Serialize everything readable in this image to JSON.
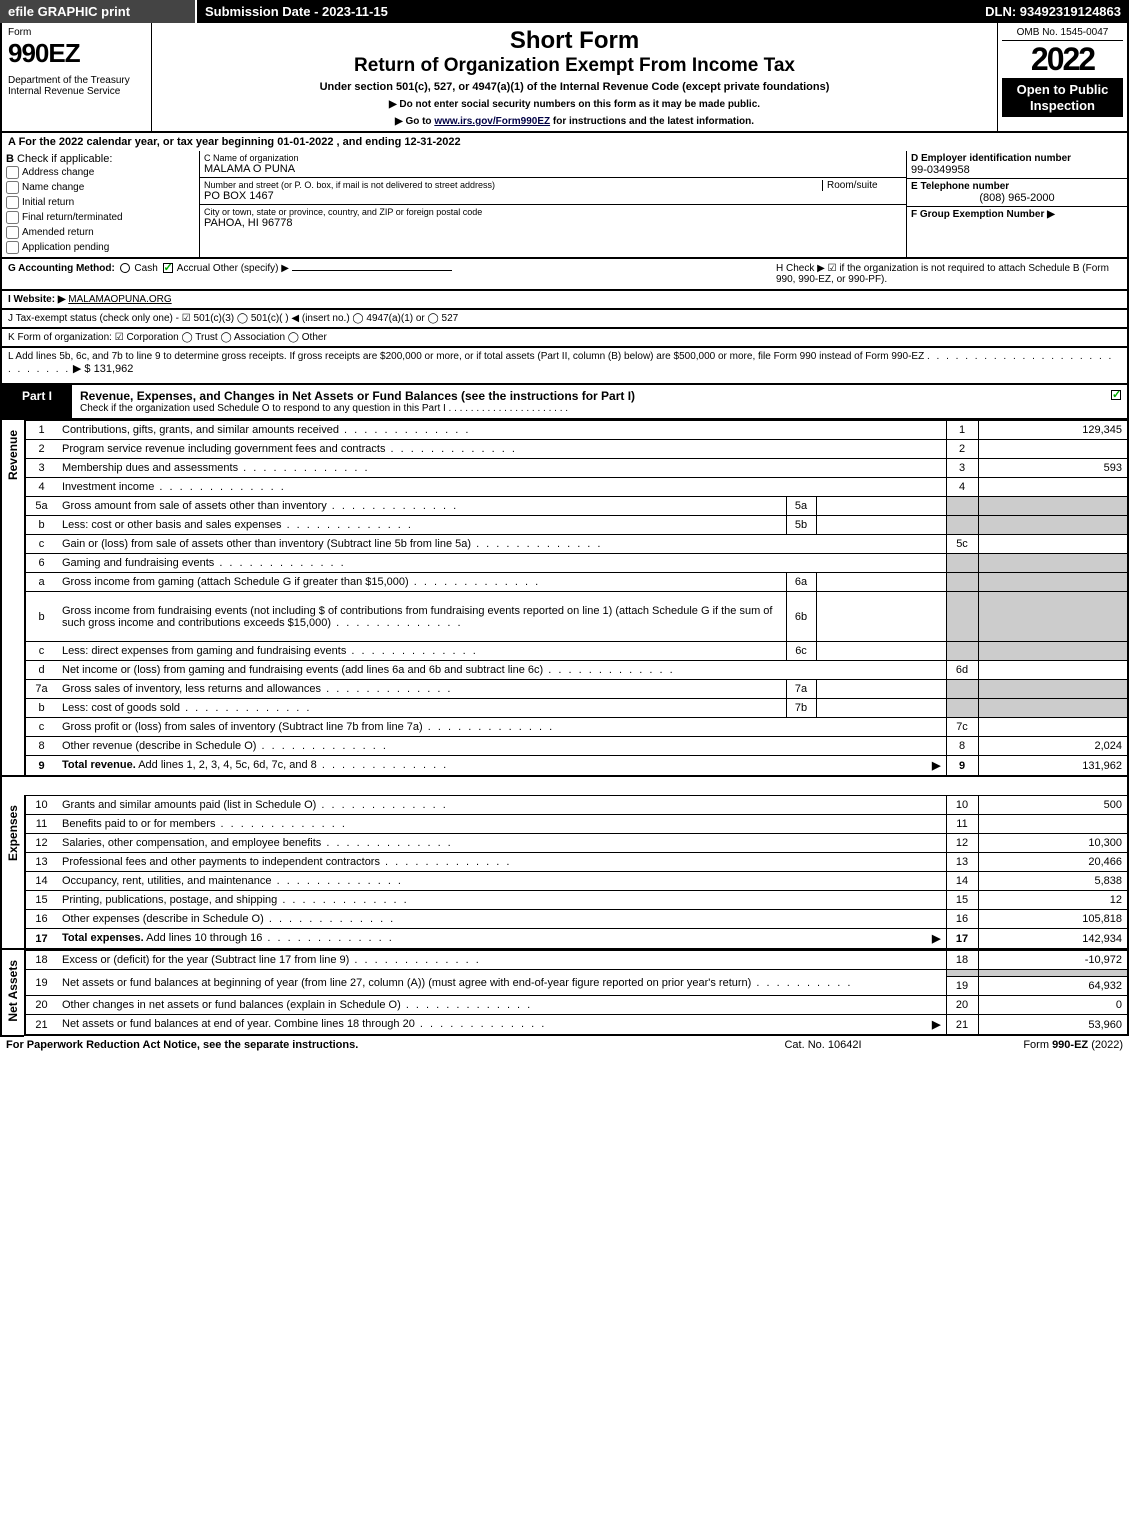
{
  "topbar": {
    "efile": "efile GRAPHIC print",
    "submission": "Submission Date - 2023-11-15",
    "dln": "DLN: 93492319124863"
  },
  "header": {
    "form_label": "Form",
    "form_number": "990EZ",
    "short_form": "Short Form",
    "return_title": "Return of Organization Exempt From Income Tax",
    "under_section": "Under section 501(c), 527, or 4947(a)(1) of the Internal Revenue Code (except private foundations)",
    "do_not_enter": "▶ Do not enter social security numbers on this form as it may be made public.",
    "go_to": "▶ Go to www.irs.gov/Form990EZ for instructions and the latest information.",
    "dept": "Department of the Treasury",
    "irs": "Internal Revenue Service",
    "omb": "OMB No. 1545-0047",
    "year": "2022",
    "open_public": "Open to Public Inspection"
  },
  "line_a": "A  For the 2022 calendar year, or tax year beginning 01-01-2022 , and ending 12-31-2022",
  "section_b": {
    "label": "B",
    "check_if": "Check if applicable:",
    "opts": [
      "Address change",
      "Name change",
      "Initial return",
      "Final return/terminated",
      "Amended return",
      "Application pending"
    ]
  },
  "section_c": {
    "name_lbl": "C Name of organization",
    "name_val": "MALAMA O PUNA",
    "street_lbl": "Number and street (or P. O. box, if mail is not delivered to street address)",
    "street_val": "PO BOX 1467",
    "room_lbl": "Room/suite",
    "city_lbl": "City or town, state or province, country, and ZIP or foreign postal code",
    "city_val": "PAHOA, HI  96778"
  },
  "section_de": {
    "d_lbl": "D Employer identification number",
    "d_val": "99-0349958",
    "e_lbl": "E Telephone number",
    "e_val": "(808) 965-2000",
    "f_lbl": "F Group Exemption Number ▶"
  },
  "section_g": {
    "label": "G Accounting Method:",
    "cash": "Cash",
    "accrual": "Accrual",
    "other": "Other (specify) ▶"
  },
  "section_h": {
    "text": "H  Check ▶ ☑ if the organization is not required to attach Schedule B (Form 990, 990-EZ, or 990-PF)."
  },
  "line_i": {
    "label": "I Website: ▶",
    "val": "MALAMAOPUNA.ORG"
  },
  "line_j": {
    "label": "J Tax-exempt status (check only one) - ☑ 501(c)(3)  ◯ 501(c)(  ) ◀ (insert no.)  ◯ 4947(a)(1) or  ◯ 527"
  },
  "line_k": {
    "label": "K Form of organization:  ☑ Corporation  ◯ Trust  ◯ Association  ◯ Other"
  },
  "line_l": {
    "text": "L Add lines 5b, 6c, and 7b to line 9 to determine gross receipts. If gross receipts are $200,000 or more, or if total assets (Part II, column (B) below) are $500,000 or more, file Form 990 instead of Form 990-EZ",
    "amount": "▶ $ 131,962"
  },
  "part1": {
    "tab": "Part I",
    "title": "Revenue, Expenses, and Changes in Net Assets or Fund Balances (see the instructions for Part I)",
    "sub": "Check if the organization used Schedule O to respond to any question in this Part I"
  },
  "sections": {
    "revenue": "Revenue",
    "expenses": "Expenses",
    "netassets": "Net Assets"
  },
  "rows": [
    {
      "n": "1",
      "d": "Contributions, gifts, grants, and similar amounts received",
      "tn": "1",
      "tv": "129,345"
    },
    {
      "n": "2",
      "d": "Program service revenue including government fees and contracts",
      "tn": "2",
      "tv": ""
    },
    {
      "n": "3",
      "d": "Membership dues and assessments",
      "tn": "3",
      "tv": "593"
    },
    {
      "n": "4",
      "d": "Investment income",
      "tn": "4",
      "tv": ""
    },
    {
      "n": "5a",
      "d": "Gross amount from sale of assets other than inventory",
      "sn": "5a",
      "sv": "",
      "shaded_tot": true
    },
    {
      "n": "b",
      "d": "Less: cost or other basis and sales expenses",
      "sn": "5b",
      "sv": "",
      "shaded_tot": true
    },
    {
      "n": "c",
      "d": "Gain or (loss) from sale of assets other than inventory (Subtract line 5b from line 5a)",
      "tn": "5c",
      "tv": ""
    },
    {
      "n": "6",
      "d": "Gaming and fundraising events",
      "shaded_tot": true,
      "no_tot_num": true
    },
    {
      "n": "a",
      "d": "Gross income from gaming (attach Schedule G if greater than $15,000)",
      "sn": "6a",
      "sv": "",
      "shaded_tot": true
    },
    {
      "n": "b",
      "d": "Gross income from fundraising events (not including $                    of contributions from fundraising events reported on line 1) (attach Schedule G if the sum of such gross income and contributions exceeds $15,000)",
      "sn": "6b",
      "sv": "",
      "shaded_tot": true,
      "tall": true
    },
    {
      "n": "c",
      "d": "Less: direct expenses from gaming and fundraising events",
      "sn": "6c",
      "sv": "",
      "shaded_tot": true
    },
    {
      "n": "d",
      "d": "Net income or (loss) from gaming and fundraising events (add lines 6a and 6b and subtract line 6c)",
      "tn": "6d",
      "tv": ""
    },
    {
      "n": "7a",
      "d": "Gross sales of inventory, less returns and allowances",
      "sn": "7a",
      "sv": "",
      "shaded_tot": true
    },
    {
      "n": "b",
      "d": "Less: cost of goods sold",
      "sn": "7b",
      "sv": "",
      "shaded_tot": true
    },
    {
      "n": "c",
      "d": "Gross profit or (loss) from sales of inventory (Subtract line 7b from line 7a)",
      "tn": "7c",
      "tv": ""
    },
    {
      "n": "8",
      "d": "Other revenue (describe in Schedule O)",
      "tn": "8",
      "tv": "2,024"
    },
    {
      "n": "9",
      "d": "Total revenue. Add lines 1, 2, 3, 4, 5c, 6d, 7c, and 8",
      "tn": "9",
      "tv": "131,962",
      "bold": true,
      "arrow": true
    }
  ],
  "rows_exp": [
    {
      "n": "10",
      "d": "Grants and similar amounts paid (list in Schedule O)",
      "tn": "10",
      "tv": "500"
    },
    {
      "n": "11",
      "d": "Benefits paid to or for members",
      "tn": "11",
      "tv": ""
    },
    {
      "n": "12",
      "d": "Salaries, other compensation, and employee benefits",
      "tn": "12",
      "tv": "10,300"
    },
    {
      "n": "13",
      "d": "Professional fees and other payments to independent contractors",
      "tn": "13",
      "tv": "20,466"
    },
    {
      "n": "14",
      "d": "Occupancy, rent, utilities, and maintenance",
      "tn": "14",
      "tv": "5,838"
    },
    {
      "n": "15",
      "d": "Printing, publications, postage, and shipping",
      "tn": "15",
      "tv": "12"
    },
    {
      "n": "16",
      "d": "Other expenses (describe in Schedule O)",
      "tn": "16",
      "tv": "105,818"
    },
    {
      "n": "17",
      "d": "Total expenses. Add lines 10 through 16",
      "tn": "17",
      "tv": "142,934",
      "bold": true,
      "arrow": true
    }
  ],
  "rows_net": [
    {
      "n": "18",
      "d": "Excess or (deficit) for the year (Subtract line 17 from line 9)",
      "tn": "18",
      "tv": "-10,972"
    },
    {
      "n": "19",
      "d": "Net assets or fund balances at beginning of year (from line 27, column (A)) (must agree with end-of-year figure reported on prior year's return)",
      "tn": "19",
      "tv": "64,932",
      "tall": true,
      "shade_first": true
    },
    {
      "n": "20",
      "d": "Other changes in net assets or fund balances (explain in Schedule O)",
      "tn": "20",
      "tv": "0"
    },
    {
      "n": "21",
      "d": "Net assets or fund balances at end of year. Combine lines 18 through 20",
      "tn": "21",
      "tv": "53,960",
      "arrow": true
    }
  ],
  "footer": {
    "left": "For Paperwork Reduction Act Notice, see the separate instructions.",
    "center": "Cat. No. 10642I",
    "right_prefix": "Form ",
    "right_form": "990-EZ",
    "right_suffix": " (2022)"
  }
}
